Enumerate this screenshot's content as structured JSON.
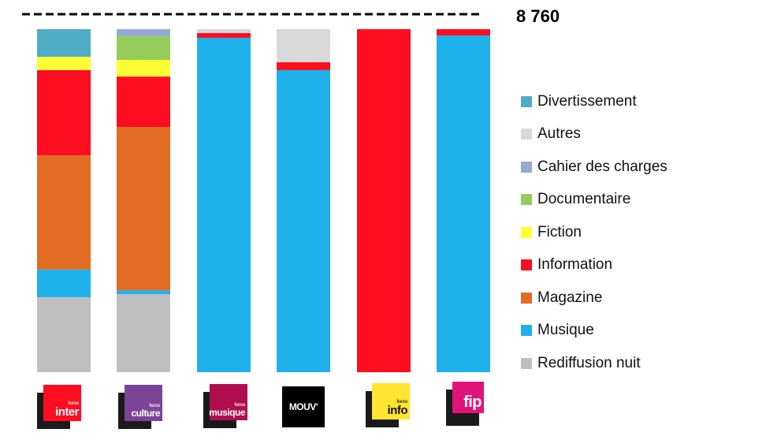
{
  "chart_data": {
    "type": "bar",
    "stacked": true,
    "total_label": "8 760",
    "total": 8760,
    "ylim": [
      0,
      8760
    ],
    "grid": false,
    "legend_placement": "right",
    "categories": [
      "France Inter",
      "France Culture",
      "France Musique",
      "Mouv'",
      "France Info",
      "Fip"
    ],
    "series": [
      {
        "name": "Rediffusion nuit",
        "color": "#BFBFBF",
        "values": [
          1915,
          1990,
          0,
          0,
          0,
          0
        ]
      },
      {
        "name": "Musique",
        "color": "#1FB1EC",
        "values": [
          705,
          100,
          8540,
          7715,
          0,
          8600
        ]
      },
      {
        "name": "Magazine",
        "color": "#E26C22",
        "values": [
          2920,
          4170,
          0,
          0,
          0,
          0
        ]
      },
      {
        "name": "Information",
        "color": "#FC0D1F",
        "values": [
          2175,
          1290,
          120,
          200,
          8760,
          160
        ]
      },
      {
        "name": "Fiction",
        "color": "#FFFF33",
        "values": [
          340,
          425,
          0,
          0,
          0,
          0
        ]
      },
      {
        "name": "Documentaire",
        "color": "#96CC5A",
        "values": [
          0,
          605,
          0,
          0,
          0,
          0
        ]
      },
      {
        "name": "Cahier des charges",
        "color": "#95A9D2",
        "values": [
          0,
          180,
          0,
          0,
          0,
          0
        ]
      },
      {
        "name": "Autres",
        "color": "#D9D9D9",
        "values": [
          0,
          0,
          100,
          845,
          0,
          0
        ]
      },
      {
        "name": "Divertissement",
        "color": "#4FACC5",
        "values": [
          705,
          0,
          0,
          0,
          0,
          0
        ]
      }
    ],
    "legend_order": [
      "Divertissement",
      "Autres",
      "Cahier des charges",
      "Documentaire",
      "Fiction",
      "Information",
      "Magazine",
      "Musique",
      "Rediffusion nuit"
    ]
  },
  "logos": [
    {
      "name": "france-inter-logo",
      "text": "inter",
      "small": "france",
      "color": "#FC0D1F",
      "textColor": "#fff"
    },
    {
      "name": "france-culture-logo",
      "text": "culture",
      "small": "france",
      "color": "#7B4597",
      "textColor": "#fff"
    },
    {
      "name": "france-musique-logo",
      "text": "musique",
      "small": "france",
      "color": "#B00E4E",
      "textColor": "#fff"
    },
    {
      "name": "mouv-logo",
      "text": "MOUV'",
      "small": "",
      "color": "#000000",
      "textColor": "#fff"
    },
    {
      "name": "france-info-logo",
      "text": "info",
      "small": "france",
      "color": "#FFE52F",
      "textColor": "#111"
    },
    {
      "name": "fip-logo",
      "text": "fip",
      "small": "",
      "color": "#E0147A",
      "textColor": "#fff"
    }
  ]
}
